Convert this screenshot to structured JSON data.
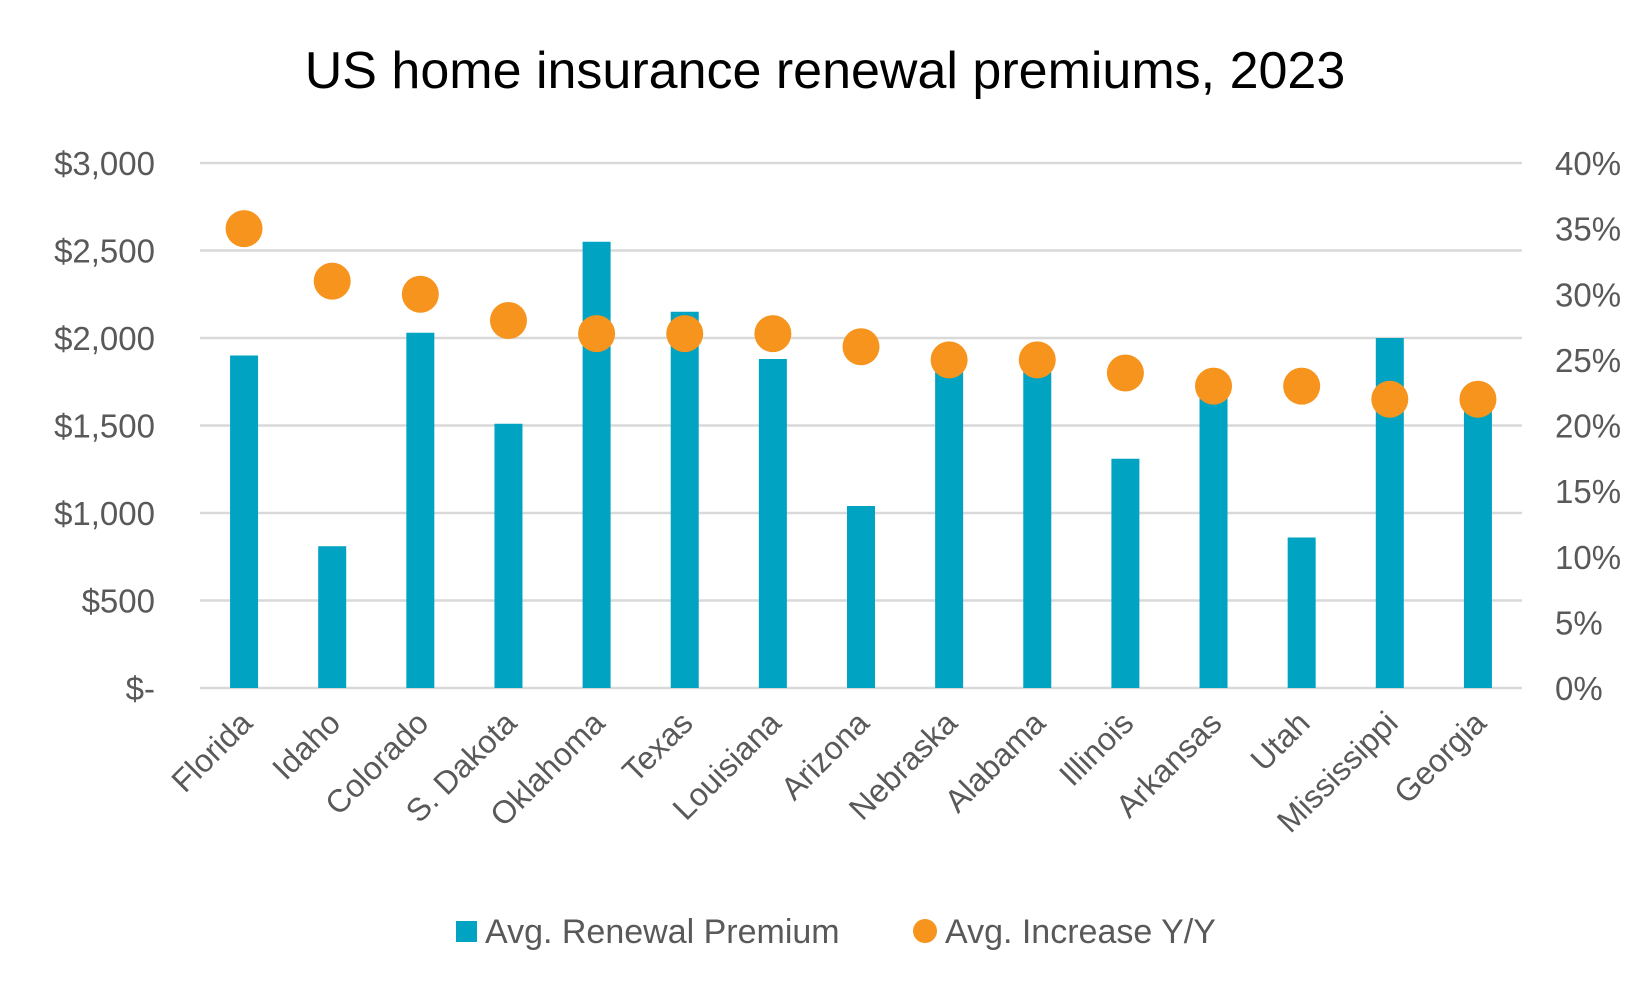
{
  "chart_data": {
    "type": "bar",
    "title": "US home insurance renewal premiums, 2023",
    "xlabel": "",
    "ylabel": "",
    "categories": [
      "Florida",
      "Idaho",
      "Colorado",
      "S. Dakota",
      "Oklahoma",
      "Texas",
      "Louisiana",
      "Arizona",
      "Nebraska",
      "Alabama",
      "Illinois",
      "Arkansas",
      "Utah",
      "Mississippi",
      "Georgia"
    ],
    "series": [
      {
        "name": "Avg. Renewal Premium",
        "type": "bar",
        "axis": "left",
        "color": "#00A3C1",
        "values": [
          1900,
          810,
          2030,
          1510,
          2550,
          2150,
          1880,
          1040,
          1840,
          1830,
          1310,
          1700,
          860,
          2000,
          1620
        ]
      },
      {
        "name": "Avg. Increase Y/Y",
        "type": "scatter",
        "axis": "right",
        "color": "#F7941D",
        "values": [
          35,
          31,
          30,
          28,
          27,
          27,
          27,
          26,
          25,
          25,
          24,
          23,
          23,
          22,
          22
        ]
      }
    ],
    "left_axis": {
      "ylim": [
        0,
        3000
      ],
      "ticks": [
        0,
        500,
        1000,
        1500,
        2000,
        2500,
        3000
      ],
      "tick_labels": [
        "$-",
        "$500",
        "$1,000",
        "$1,500",
        "$2,000",
        "$2,500",
        "$3,000"
      ]
    },
    "right_axis": {
      "ylim": [
        0,
        40
      ],
      "ticks": [
        0,
        5,
        10,
        15,
        20,
        25,
        30,
        35,
        40
      ],
      "tick_labels": [
        "0%",
        "5%",
        "10%",
        "15%",
        "20%",
        "25%",
        "30%",
        "35%",
        "40%"
      ]
    },
    "grid": true,
    "legend_position": "bottom"
  }
}
